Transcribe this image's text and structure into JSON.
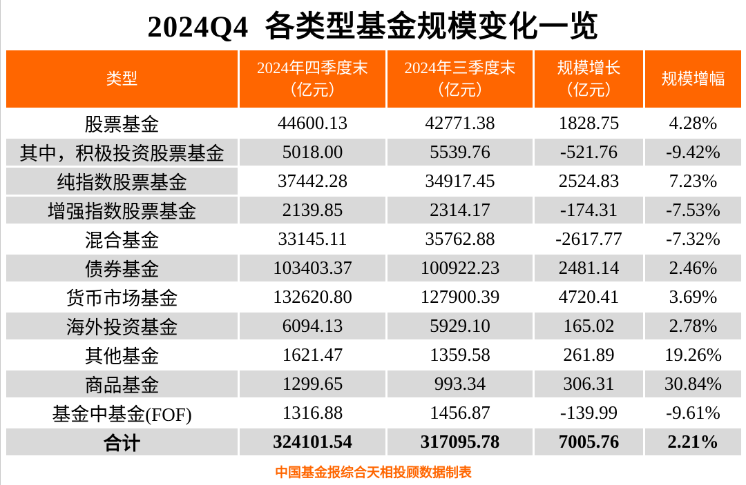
{
  "title": "2024Q4  各类型基金规模变化一览",
  "source_note": "中国基金报综合天相投顾数据制表",
  "colors": {
    "header_orange": "#FF6600",
    "stripe_gray": "#D9D9D9",
    "header_text": "#FFFFFF",
    "body_text": "#000000",
    "source_text": "#FF6600"
  },
  "chart_data": {
    "type": "table",
    "title": "2024Q4 各类型基金规模变化一览",
    "columns": [
      "类型",
      "2024年四季度末（亿元）",
      "2024年三季度末（亿元）",
      "规模增长（亿元）",
      "规模增幅"
    ],
    "header_lines": [
      [
        "类型"
      ],
      [
        "2024年四季度末",
        "（亿元）"
      ],
      [
        "2024年三季度末",
        "（亿元）"
      ],
      [
        "规模增长",
        "（亿元）"
      ],
      [
        "规模增幅"
      ]
    ],
    "rows": [
      {
        "type": "股票基金",
        "q4_end": "44600.13",
        "q3_end": "42771.38",
        "growth": "1828.75",
        "growth_pct": "4.28%",
        "label_bg": "white",
        "data_bg": "white",
        "is_total": false
      },
      {
        "type": "其中，积极投资股票基金",
        "q4_end": "5018.00",
        "q3_end": "5539.76",
        "growth": "-521.76",
        "growth_pct": "-9.42%",
        "label_bg": "gray",
        "data_bg": "gray",
        "is_total": false
      },
      {
        "type": "纯指数股票基金",
        "q4_end": "37442.28",
        "q3_end": "34917.45",
        "growth": "2524.83",
        "growth_pct": "7.23%",
        "label_bg": "gray",
        "data_bg": "white",
        "is_total": false
      },
      {
        "type": "增强指数股票基金",
        "q4_end": "2139.85",
        "q3_end": "2314.17",
        "growth": "-174.31",
        "growth_pct": "-7.53%",
        "label_bg": "gray",
        "data_bg": "gray",
        "is_total": false
      },
      {
        "type": "混合基金",
        "q4_end": "33145.11",
        "q3_end": "35762.88",
        "growth": "-2617.77",
        "growth_pct": "-7.32%",
        "label_bg": "white",
        "data_bg": "white",
        "is_total": false
      },
      {
        "type": "债券基金",
        "q4_end": "103403.37",
        "q3_end": "100922.23",
        "growth": "2481.14",
        "growth_pct": "2.46%",
        "label_bg": "gray",
        "data_bg": "gray",
        "is_total": false
      },
      {
        "type": "货币市场基金",
        "q4_end": "132620.80",
        "q3_end": "127900.39",
        "growth": "4720.41",
        "growth_pct": "3.69%",
        "label_bg": "white",
        "data_bg": "white",
        "is_total": false
      },
      {
        "type": "海外投资基金",
        "q4_end": "6094.13",
        "q3_end": "5929.10",
        "growth": "165.02",
        "growth_pct": "2.78%",
        "label_bg": "gray",
        "data_bg": "gray",
        "is_total": false
      },
      {
        "type": "其他基金",
        "q4_end": "1621.47",
        "q3_end": "1359.58",
        "growth": "261.89",
        "growth_pct": "19.26%",
        "label_bg": "white",
        "data_bg": "white",
        "is_total": false
      },
      {
        "type": "商品基金",
        "q4_end": "1299.65",
        "q3_end": "993.34",
        "growth": "306.31",
        "growth_pct": "30.84%",
        "label_bg": "gray",
        "data_bg": "gray",
        "is_total": false
      },
      {
        "type": "基金中基金(FOF)",
        "q4_end": "1316.88",
        "q3_end": "1456.87",
        "growth": "-139.99",
        "growth_pct": "-9.61%",
        "label_bg": "white",
        "data_bg": "white",
        "is_total": false
      },
      {
        "type": "合计",
        "q4_end": "324101.54",
        "q3_end": "317095.78",
        "growth": "7005.76",
        "growth_pct": "2.21%",
        "label_bg": "gray",
        "data_bg": "gray",
        "is_total": true
      }
    ]
  }
}
